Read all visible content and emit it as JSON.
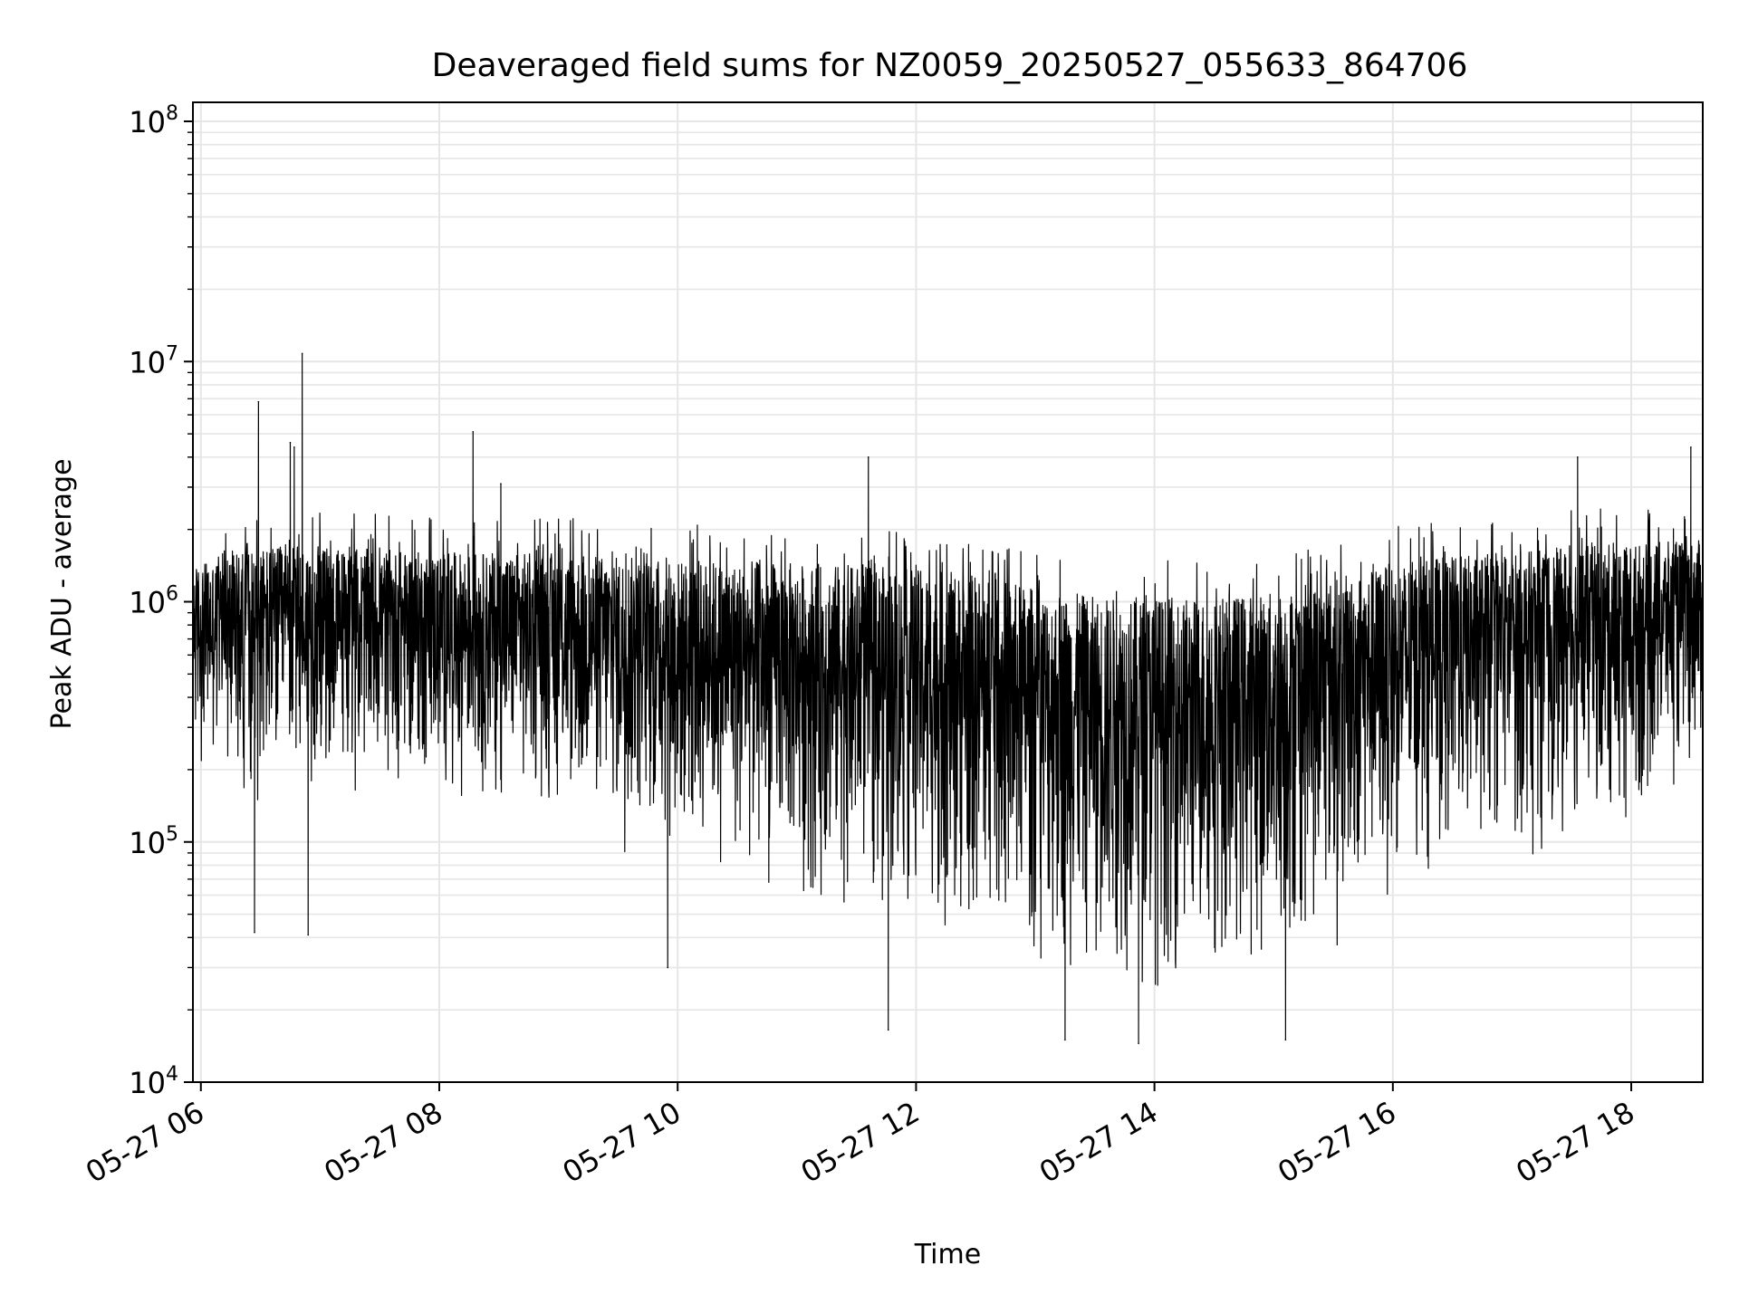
{
  "chart_data": {
    "type": "line",
    "title": "Deaveraged field sums for NZ0059_20250527_055633_864706",
    "xlabel": "Time",
    "ylabel": "Peak ADU - average",
    "yscale": "log",
    "ylim": [
      10000,
      120000000
    ],
    "xlim": [
      "2025-05-27 05:56",
      "2025-05-27 18:36"
    ],
    "x_ticks": [
      {
        "value": "2025-05-27 06:00",
        "label": "05-27 06"
      },
      {
        "value": "2025-05-27 08:00",
        "label": "05-27 08"
      },
      {
        "value": "2025-05-27 10:00",
        "label": "05-27 10"
      },
      {
        "value": "2025-05-27 12:00",
        "label": "05-27 12"
      },
      {
        "value": "2025-05-27 14:00",
        "label": "05-27 14"
      },
      {
        "value": "2025-05-27 16:00",
        "label": "05-27 16"
      },
      {
        "value": "2025-05-27 18:00",
        "label": "05-27 18"
      }
    ],
    "y_ticks": [
      {
        "value": 10000,
        "base": "10",
        "exp": "4"
      },
      {
        "value": 100000,
        "base": "10",
        "exp": "5"
      },
      {
        "value": 1000000,
        "base": "10",
        "exp": "6"
      },
      {
        "value": 10000000,
        "base": "10",
        "exp": "7"
      },
      {
        "value": 100000000,
        "base": "10",
        "exp": "8"
      }
    ],
    "grid": true,
    "line_color": "#000000",
    "grid_color": "#e6e6e6",
    "envelope": {
      "x": [
        "2025-05-27 05:56",
        "2025-05-27 06:30",
        "2025-05-27 07:00",
        "2025-05-27 08:00",
        "2025-05-27 09:00",
        "2025-05-27 10:00",
        "2025-05-27 11:00",
        "2025-05-27 11:45",
        "2025-05-27 12:30",
        "2025-05-27 13:00",
        "2025-05-27 13:30",
        "2025-05-27 14:00",
        "2025-05-27 14:30",
        "2025-05-27 15:00",
        "2025-05-27 15:30",
        "2025-05-27 16:00",
        "2025-05-27 16:30",
        "2025-05-27 17:00",
        "2025-05-27 17:30",
        "2025-05-27 18:00",
        "2025-05-27 18:36"
      ],
      "upper": [
        1400000,
        1700000,
        1700000,
        1600000,
        1600000,
        1500000,
        1450000,
        1400000,
        1300000,
        1150000,
        1050000,
        1050000,
        1050000,
        1100000,
        1250000,
        1450000,
        1550000,
        1600000,
        1700000,
        1750000,
        1800000
      ],
      "lower": [
        200000,
        120000,
        150000,
        150000,
        110000,
        70000,
        50000,
        40000,
        30000,
        25000,
        22000,
        22000,
        24000,
        25000,
        35000,
        50000,
        70000,
        80000,
        90000,
        100000,
        200000
      ]
    },
    "spikes": [
      {
        "x": "2025-05-27 06:29",
        "y": 6800000
      },
      {
        "x": "2025-05-27 06:45",
        "y": 4600000
      },
      {
        "x": "2025-05-27 06:47",
        "y": 4400000
      },
      {
        "x": "2025-05-27 06:51",
        "y": 10800000
      },
      {
        "x": "2025-05-27 08:17",
        "y": 5100000
      },
      {
        "x": "2025-05-27 08:31",
        "y": 3100000
      },
      {
        "x": "2025-05-27 11:36",
        "y": 4000000
      },
      {
        "x": "2025-05-27 17:33",
        "y": 4000000
      },
      {
        "x": "2025-05-27 18:30",
        "y": 4400000
      }
    ],
    "dips": [
      {
        "x": "2025-05-27 06:27",
        "y": 42000
      },
      {
        "x": "2025-05-27 06:54",
        "y": 41000
      },
      {
        "x": "2025-05-27 09:55",
        "y": 30000
      },
      {
        "x": "2025-05-27 11:46",
        "y": 16500
      },
      {
        "x": "2025-05-27 13:15",
        "y": 15000
      },
      {
        "x": "2025-05-27 13:52",
        "y": 14500
      },
      {
        "x": "2025-05-27 15:06",
        "y": 15000
      }
    ]
  }
}
